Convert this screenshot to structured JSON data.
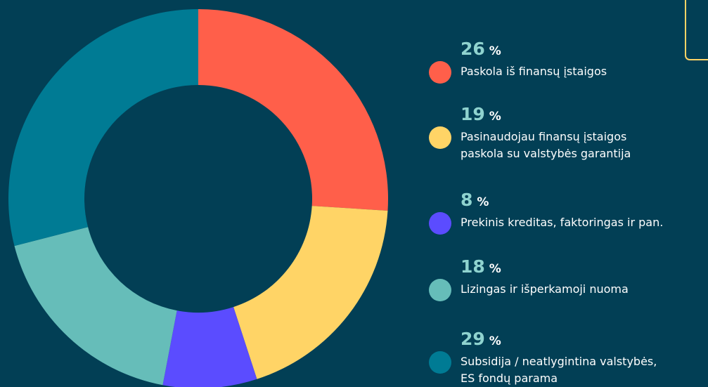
{
  "chart_data": {
    "type": "donut",
    "categories": [
      "Paskola iš finansų įstaigos",
      "Pasinaudojau finansų įstaigos\npaskola su valstybės garantija",
      "Prekinis kreditas, faktoringas ir pan.",
      "Lizingas ir išperkamoji nuoma",
      "Subsidija / neatlygintina valstybės,\nES fondų parama"
    ],
    "values": [
      26,
      19,
      8,
      18,
      29
    ],
    "value_labels": [
      "26 %",
      "19 %",
      "8 %",
      "18 %",
      "29 %"
    ],
    "colors": [
      "#ff5f4a",
      "#ffd466",
      "#5b4cff",
      "#66bdb9",
      "#007b94"
    ]
  }
}
